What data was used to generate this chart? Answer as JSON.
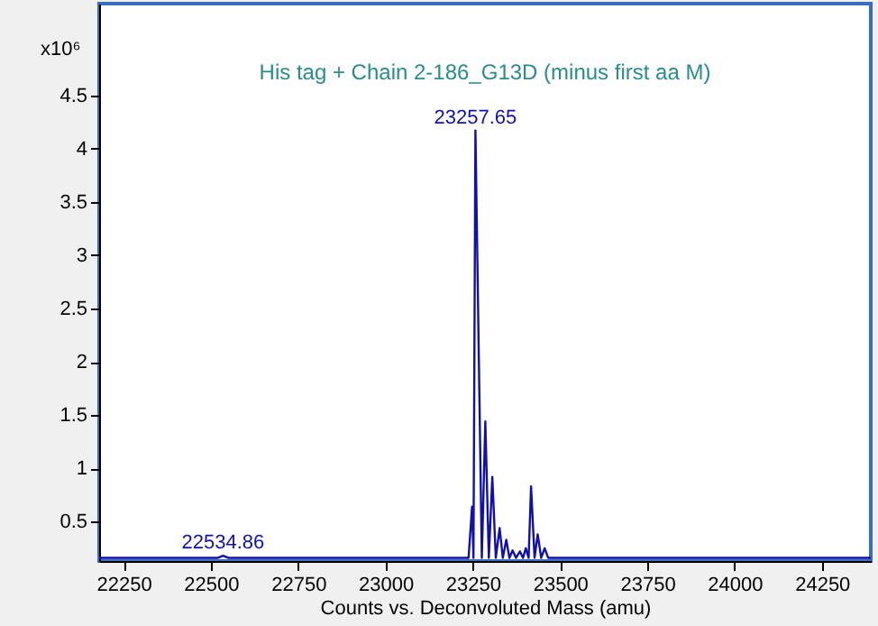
{
  "chart_data": {
    "type": "line",
    "title": "His tag + Chain 2-186_G13D (minus first aa M)",
    "xlabel": "Counts vs. Deconvoluted Mass (amu)",
    "ylabel": "x10⁶",
    "series": [
      {
        "color": "#1010b0",
        "x": [
          22180,
          22520,
          22534.86,
          22550,
          23238,
          23248,
          23252,
          23257.65,
          23276,
          23286,
          23296,
          23306,
          23316,
          23327,
          23336,
          23346,
          23355,
          23364,
          23374,
          23385,
          23394,
          23402,
          23410,
          23417,
          23427,
          23436,
          23446,
          23456,
          23466,
          24390
        ],
        "values": [
          0.16,
          0.16,
          0.18,
          0.16,
          0.16,
          0.64,
          0.16,
          4.17,
          0.16,
          1.44,
          0.16,
          0.92,
          0.16,
          0.44,
          0.16,
          0.33,
          0.16,
          0.23,
          0.16,
          0.22,
          0.16,
          0.25,
          0.16,
          0.83,
          0.16,
          0.38,
          0.16,
          0.25,
          0.16,
          0.16
        ]
      }
    ],
    "annotations": [
      {
        "text": "23257.65",
        "x": 23257.65,
        "y": 4.17
      },
      {
        "text": "22534.86",
        "x": 22534.86,
        "y": 0.18
      }
    ],
    "xlim": [
      22180,
      24390
    ],
    "xticks": [
      22250,
      22500,
      22750,
      23000,
      23250,
      23500,
      23750,
      24000,
      24250
    ],
    "ylim": [
      0.13,
      5.36
    ],
    "yticks": [
      0.5,
      1,
      1.5,
      2,
      2.5,
      3,
      3.5,
      4,
      4.5
    ],
    "grid": false,
    "marker": "none",
    "line_style": "solid"
  }
}
